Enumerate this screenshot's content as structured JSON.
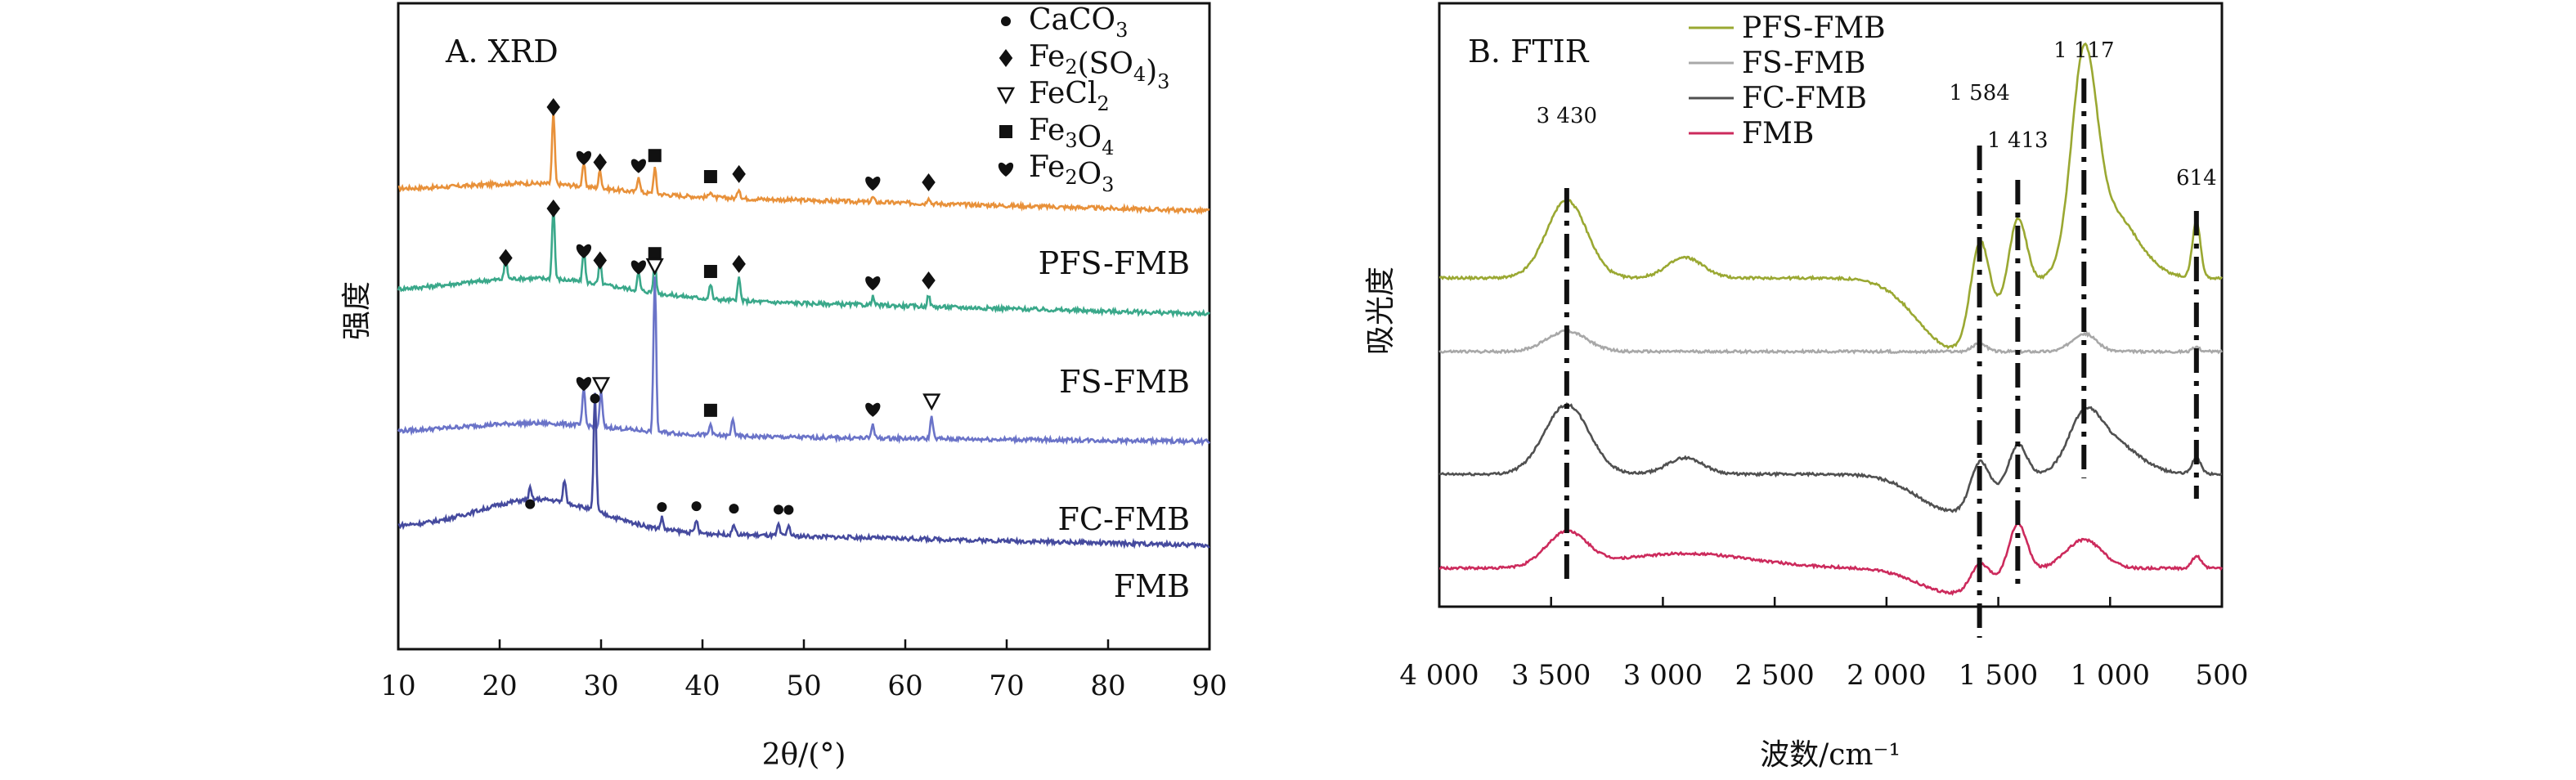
{
  "chart_data": [
    {
      "panel": "A. XRD",
      "type": "line",
      "title": "A. XRD",
      "xlabel": "2θ/(°)",
      "ylabel": "强度",
      "xlim": [
        10,
        90
      ],
      "xticks": [
        "10",
        "20",
        "30",
        "40",
        "50",
        "60",
        "70",
        "80",
        "90"
      ],
      "legend": [
        {
          "marker": "circle",
          "formula": "CaCO3"
        },
        {
          "marker": "diamond",
          "formula": "Fe2(SO4)3"
        },
        {
          "marker": "triangle-down",
          "formula": "FeCl2"
        },
        {
          "marker": "square",
          "formula": "Fe3O4"
        },
        {
          "marker": "heart",
          "formula": "Fe2O3"
        }
      ],
      "series": [
        {
          "name": "PFS-FMB",
          "color": "#e8913a",
          "peaks": [
            25.3,
            28.3,
            29.9,
            33.7,
            35.3,
            40.8,
            43.6,
            56.8,
            62.3
          ],
          "markers": [
            [
              "diamond",
              25.3
            ],
            [
              "heart",
              28.3
            ],
            [
              "diamond",
              29.9
            ],
            [
              "heart",
              33.7
            ],
            [
              "square",
              35.3
            ],
            [
              "square",
              40.8
            ],
            [
              "diamond",
              43.6
            ],
            [
              "heart",
              56.8
            ],
            [
              "diamond",
              62.3
            ]
          ]
        },
        {
          "name": "FS-FMB",
          "color": "#3aa88a",
          "peaks": [
            20.6,
            25.3,
            28.3,
            29.9,
            33.7,
            35.3,
            40.8,
            43.6,
            56.8,
            62.3
          ],
          "markers": [
            [
              "diamond",
              20.6
            ],
            [
              "diamond",
              25.3
            ],
            [
              "heart",
              28.3
            ],
            [
              "diamond",
              29.9
            ],
            [
              "heart",
              33.7
            ],
            [
              "square",
              35.3
            ],
            [
              "square",
              40.8
            ],
            [
              "diamond",
              43.6
            ],
            [
              "heart",
              56.8
            ],
            [
              "diamond",
              62.3
            ]
          ]
        },
        {
          "name": "FC-FMB",
          "color": "#6a73c8",
          "peaks": [
            28.3,
            30.0,
            35.3,
            40.8,
            43.0,
            56.8,
            62.6
          ],
          "markers": [
            [
              "heart",
              28.3
            ],
            [
              "triangle-down",
              30.0
            ],
            [
              "triangle-down",
              35.3
            ],
            [
              "square",
              40.8
            ],
            [
              "heart",
              56.8
            ],
            [
              "triangle-down",
              62.6
            ]
          ]
        },
        {
          "name": "FMB",
          "color": "#454a9e",
          "peaks": [
            23.0,
            26.4,
            29.4,
            36.0,
            39.4,
            43.1,
            47.5,
            48.5
          ],
          "markers": [
            [
              "circle",
              23.0
            ],
            [
              "circle",
              29.4
            ],
            [
              "circle",
              36.0
            ],
            [
              "circle",
              39.4
            ],
            [
              "circle",
              43.1
            ],
            [
              "circle",
              47.5
            ],
            [
              "circle",
              48.5
            ]
          ]
        }
      ]
    },
    {
      "panel": "B. FTIR",
      "type": "line",
      "title": "B. FTIR",
      "xlabel": "波数/cm⁻¹",
      "ylabel": "吸光度",
      "xlim": [
        4000,
        500
      ],
      "xticks": [
        "4 000",
        "3 500",
        "3 000",
        "2 500",
        "2 000",
        "1 500",
        "1 000",
        "500"
      ],
      "peak_labels": [
        {
          "text": "3 430",
          "x": 3430
        },
        {
          "text": "1 584",
          "x": 1584
        },
        {
          "text": "1 413",
          "x": 1413
        },
        {
          "text": "1 117",
          "x": 1117
        },
        {
          "text": "614",
          "x": 614
        }
      ],
      "series": [
        {
          "name": "PFS-FMB",
          "color": "#9aa832"
        },
        {
          "name": "FS-FMB",
          "color": "#a8a8a8"
        },
        {
          "name": "FC-FMB",
          "color": "#505050"
        },
        {
          "name": "FMB",
          "color": "#cc2a5c"
        }
      ]
    }
  ]
}
